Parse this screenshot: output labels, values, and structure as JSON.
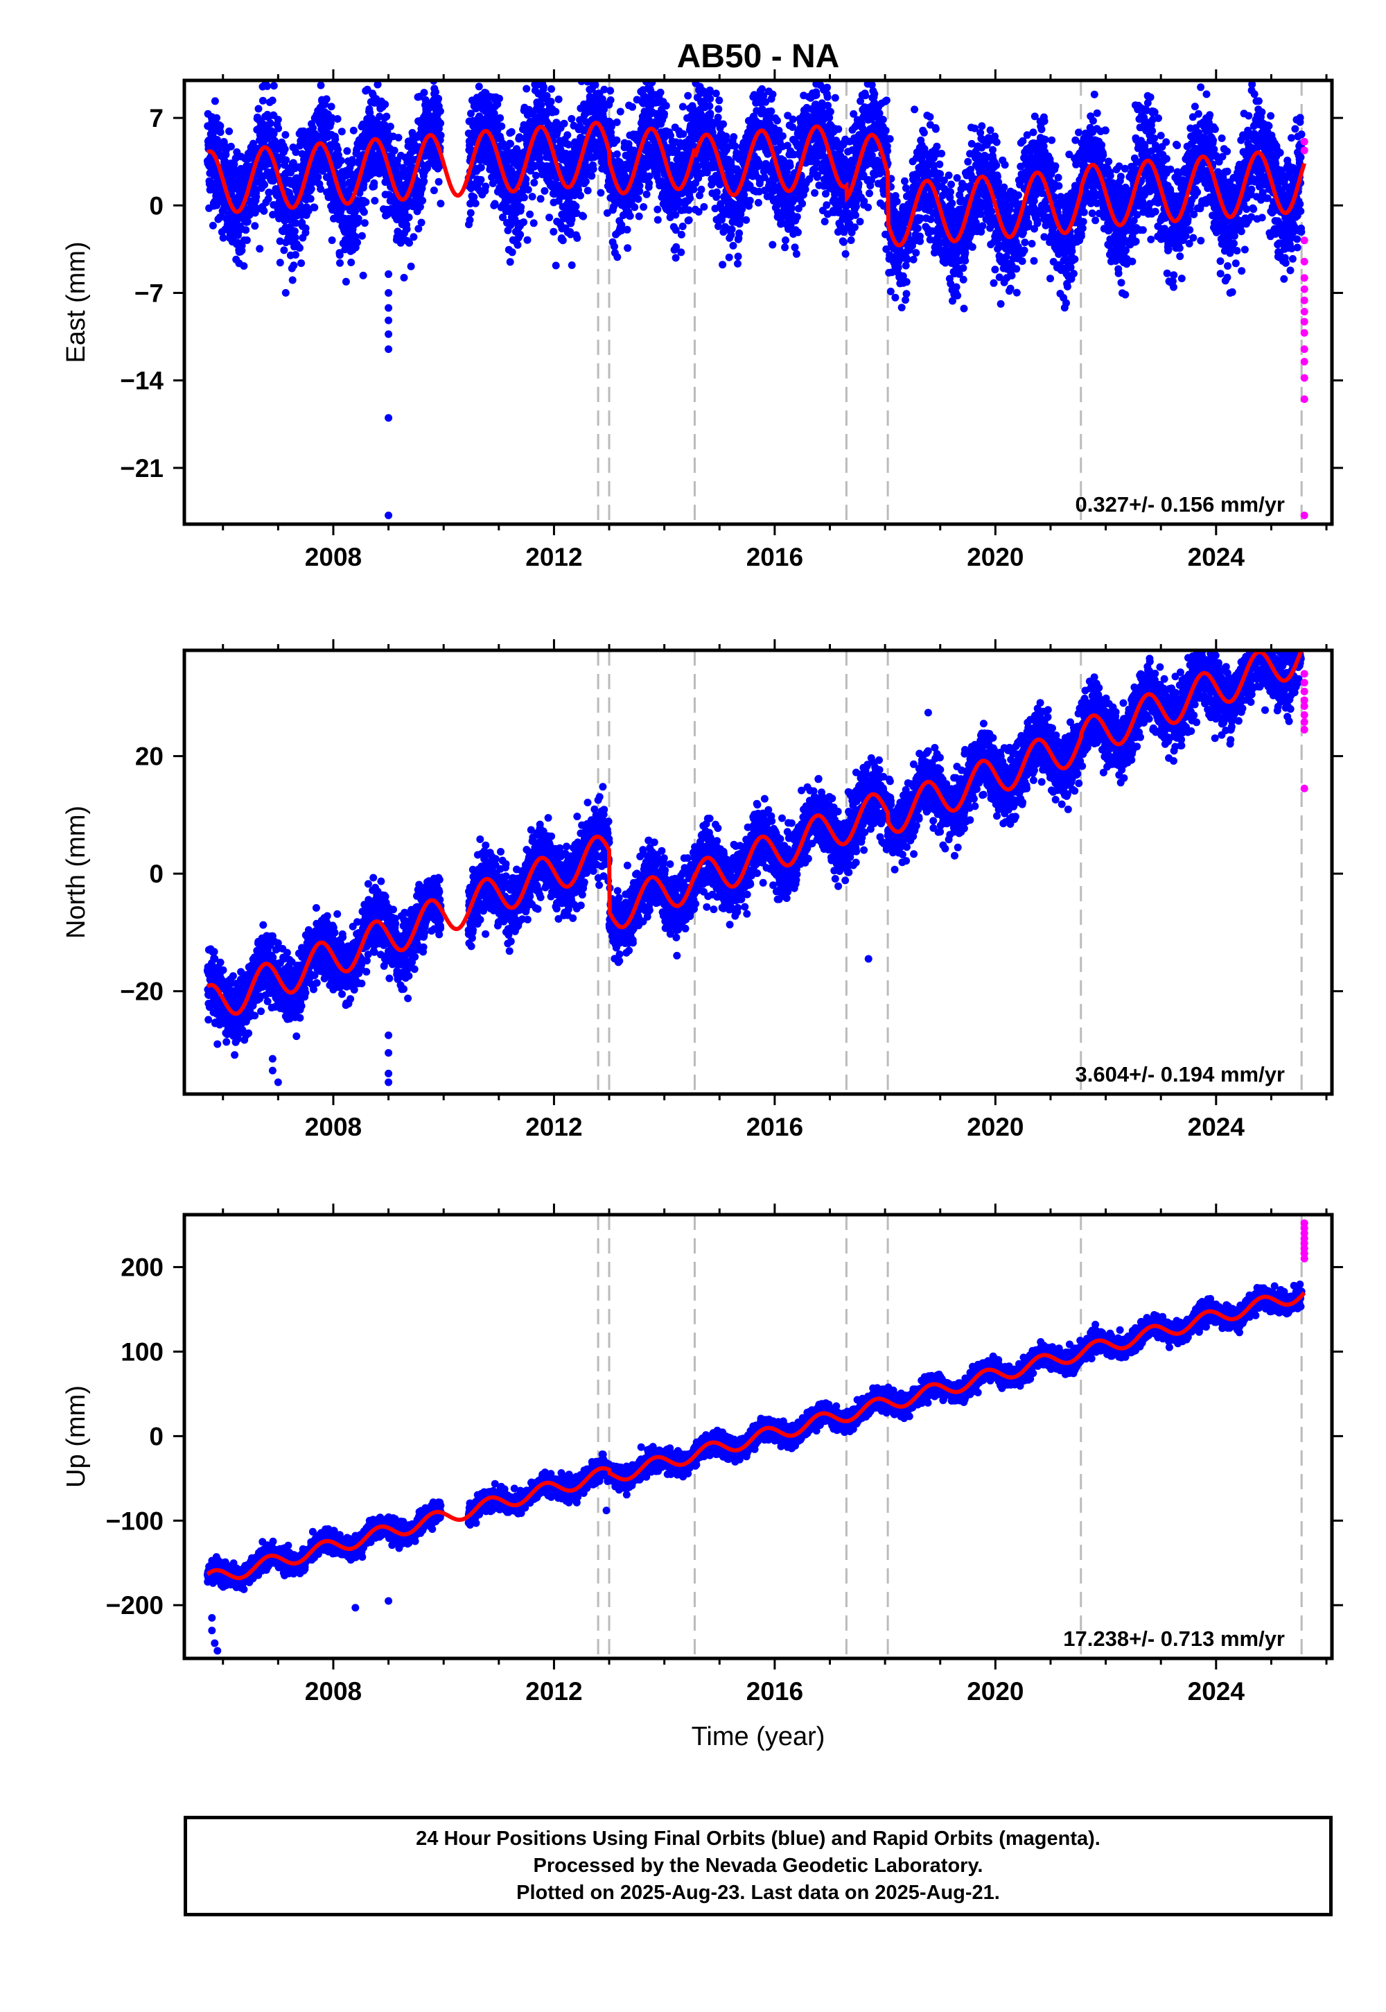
{
  "title": "AB50 - NA",
  "xlabel": "Time (year)",
  "x_ticks": [
    "2008",
    "2012",
    "2016",
    "2020",
    "2024"
  ],
  "colors": {
    "final": "#0000ff",
    "rapid": "#ff00ff",
    "model": "#ff0000",
    "steps": "#bbbbbb"
  },
  "step_dates": [
    2012.8,
    2013.0,
    2014.55,
    2017.3,
    2018.05,
    2021.55,
    2025.55
  ],
  "chart_data": [
    {
      "type": "scatter",
      "ylabel": "East (mm)",
      "yticks": [
        "7",
        "0",
        "-7",
        "-14",
        "-21"
      ],
      "ylim": [
        -25.5,
        10
      ],
      "xlim": [
        2005.3,
        2026.1
      ],
      "velocity": "0.327+/- 0.156 mm/yr",
      "model": {
        "base": 1.8,
        "trend": 0.327,
        "amp": 2.5,
        "phase": 1.2,
        "offsets": [
          [
            2012.8,
            0
          ],
          [
            2013.0,
            -0.8
          ],
          [
            2014.55,
            -0.8
          ],
          [
            2017.3,
            -1.0
          ],
          [
            2018.05,
            -4.0
          ],
          [
            2021.55,
            0.3
          ],
          [
            2025.55,
            0
          ]
        ]
      },
      "scatter": 4.4,
      "outliers": [
        [
          2009.0,
          -5.5
        ],
        [
          2009.0,
          -7.0
        ],
        [
          2009.0,
          -8.2
        ],
        [
          2009.0,
          -9.2
        ],
        [
          2009.0,
          -10.3
        ],
        [
          2009.0,
          -11.5
        ],
        [
          2009.0,
          -17.0
        ],
        [
          2009.0,
          -24.8
        ],
        [
          2017.8,
          7.8
        ]
      ],
      "rapid": [
        [
          2025.6,
          5.1
        ],
        [
          2025.6,
          4.4
        ],
        [
          2025.6,
          -2.8
        ],
        [
          2025.6,
          -4.5
        ],
        [
          2025.6,
          -5.8
        ],
        [
          2025.6,
          -6.7
        ],
        [
          2025.6,
          -7.6
        ],
        [
          2025.6,
          -8.5
        ],
        [
          2025.6,
          -9.3
        ],
        [
          2025.6,
          -10.2
        ],
        [
          2025.6,
          -11.5
        ],
        [
          2025.6,
          -12.5
        ],
        [
          2025.6,
          -13.8
        ],
        [
          2025.6,
          -15.5
        ],
        [
          2025.6,
          -24.8
        ]
      ]
    },
    {
      "type": "scatter",
      "ylabel": "North (mm)",
      "yticks": [
        "20",
        "0",
        "-20"
      ],
      "ylim": [
        -37.5,
        38
      ],
      "xlim": [
        2005.3,
        2026.1
      ],
      "velocity": "3.604+/- 0.194 mm/yr",
      "model": {
        "base": -22.5,
        "trend": 3.604,
        "amp": 3.3,
        "phase": 1.2,
        "offsets": [
          [
            2012.8,
            0
          ],
          [
            2013.0,
            -10.5
          ],
          [
            2014.55,
            -0.3
          ],
          [
            2017.3,
            0
          ],
          [
            2018.05,
            -1.5
          ],
          [
            2021.55,
            0.5
          ],
          [
            2025.55,
            0
          ]
        ]
      },
      "scatter": 5.5,
      "outliers": [
        [
          2005.9,
          -29.0
        ],
        [
          2006.9,
          -31.5
        ],
        [
          2006.9,
          -33.5
        ],
        [
          2007.0,
          -35.5
        ],
        [
          2009.0,
          -27.5
        ],
        [
          2009.0,
          -30.5
        ],
        [
          2009.0,
          -34.0
        ],
        [
          2009.0,
          -35.5
        ],
        [
          2017.7,
          -14.5
        ],
        [
          2025.45,
          38.5
        ]
      ],
      "rapid": [
        [
          2025.6,
          34.0
        ],
        [
          2025.6,
          32.5
        ],
        [
          2025.6,
          31.0
        ],
        [
          2025.6,
          29.5
        ],
        [
          2025.6,
          28.5
        ],
        [
          2025.6,
          27.0
        ],
        [
          2025.6,
          25.8
        ],
        [
          2025.6,
          24.5
        ],
        [
          2025.6,
          14.5
        ]
      ]
    },
    {
      "type": "scatter",
      "ylabel": "Up (mm)",
      "yticks": [
        "200",
        "100",
        "0",
        "-100",
        "-200"
      ],
      "ylim": [
        -263,
        262
      ],
      "xlim": [
        2005.3,
        2026.1
      ],
      "velocity": "17.238+/- 0.713 mm/yr",
      "model": {
        "base": -170.0,
        "trend": 17.238,
        "amp": 8.5,
        "phase": 0.7,
        "offsets": [
          [
            2012.8,
            0
          ],
          [
            2013.0,
            -4
          ],
          [
            2014.55,
            0
          ],
          [
            2017.3,
            0
          ],
          [
            2018.05,
            0
          ],
          [
            2021.55,
            0
          ],
          [
            2025.55,
            0
          ]
        ]
      },
      "scatter": 12,
      "outliers": [
        [
          2005.8,
          -215
        ],
        [
          2005.8,
          -230
        ],
        [
          2005.85,
          -245
        ],
        [
          2005.9,
          -254
        ],
        [
          2008.4,
          -203
        ],
        [
          2009.0,
          -195
        ],
        [
          2012.95,
          -88
        ]
      ],
      "rapid": [
        [
          2025.6,
          252
        ],
        [
          2025.6,
          246
        ],
        [
          2025.6,
          240
        ],
        [
          2025.6,
          234
        ],
        [
          2025.6,
          228
        ],
        [
          2025.6,
          222
        ],
        [
          2025.6,
          216
        ],
        [
          2025.6,
          210
        ]
      ]
    }
  ],
  "footer": {
    "line1": "24 Hour Positions Using Final Orbits (blue) and Rapid Orbits (magenta).",
    "line2": "Processed by the Nevada Geodetic Laboratory.",
    "line3": "Plotted on 2025-Aug-23. Last data on 2025-Aug-21."
  }
}
